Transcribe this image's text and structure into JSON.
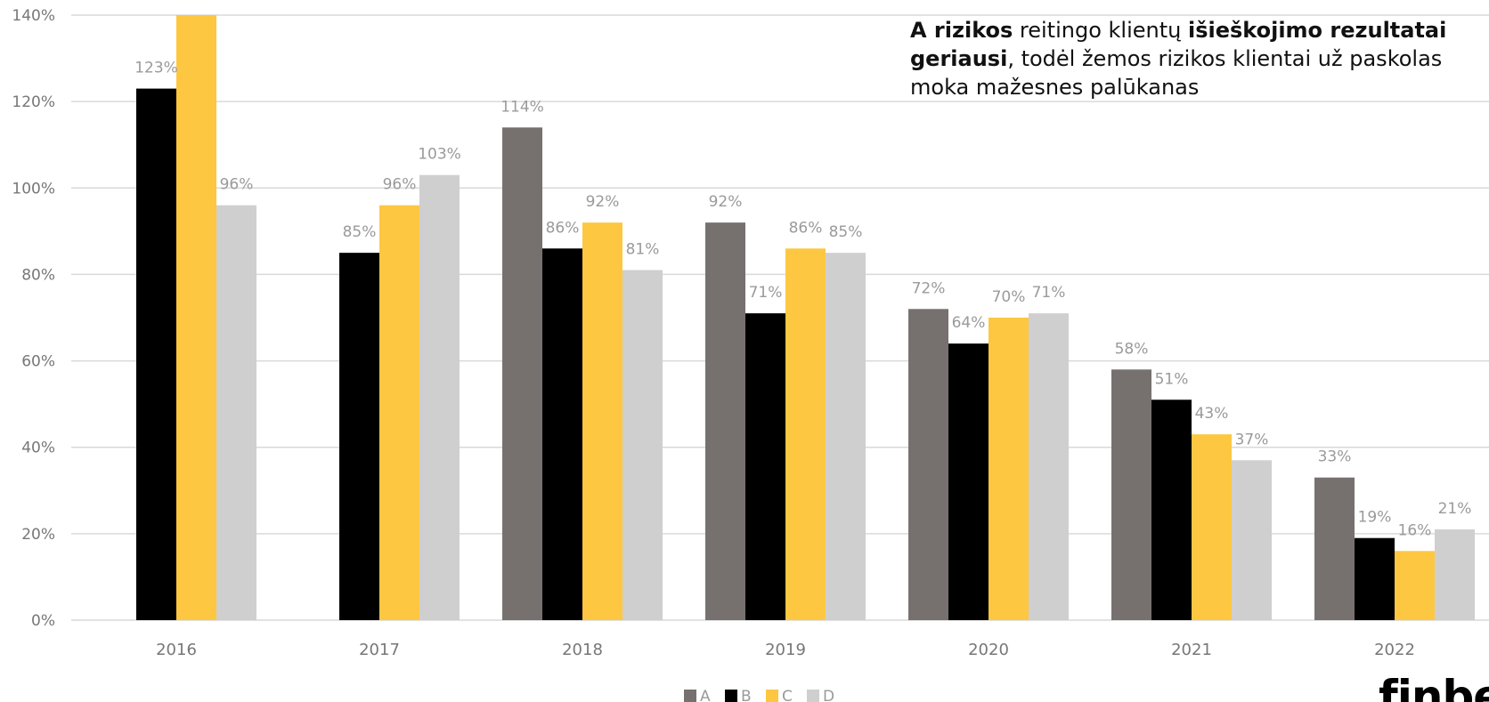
{
  "chart_data": {
    "type": "bar",
    "categories": [
      "2016",
      "2017",
      "2018",
      "2019",
      "2020",
      "2021",
      "2022"
    ],
    "series": [
      {
        "name": "A",
        "color": "#76716f",
        "values": [
          null,
          null,
          114,
          92,
          72,
          58,
          33
        ],
        "labels": [
          null,
          null,
          "114%",
          "92%",
          "72%",
          "58%",
          "33%"
        ]
      },
      {
        "name": "B",
        "color": "#000000",
        "values": [
          123,
          85,
          86,
          71,
          64,
          51,
          19
        ],
        "labels": [
          "123%",
          "85%",
          "86%",
          "71%",
          "64%",
          "51%",
          "19%"
        ]
      },
      {
        "name": "C",
        "color": "#fdc742",
        "values": [
          140,
          96,
          92,
          86,
          70,
          43,
          16
        ],
        "labels": [
          "",
          "96%",
          "92%",
          "86%",
          "70%",
          "43%",
          "16%"
        ]
      },
      {
        "name": "D",
        "color": "#d0cfcf",
        "values": [
          96,
          103,
          81,
          85,
          71,
          37,
          21
        ],
        "labels": [
          "96%",
          "103%",
          "81%",
          "85%",
          "71%",
          "37%",
          "21%"
        ]
      }
    ],
    "y_ticks": [
      "0%",
      "20%",
      "40%",
      "60%",
      "80%",
      "100%",
      "120%",
      "140%"
    ],
    "ylim": [
      0,
      140
    ],
    "grid": true,
    "legend": "bottom-center"
  },
  "annotation": {
    "bold1": "A rizikos",
    "text1": " reitingo klientų ",
    "bold2": "išieškojimo rezultatai",
    "bold3": "geriausi",
    "text2": ", todėl žemos rizikos klientai už paskolas",
    "text3": "moka mažesnes palūkanas"
  },
  "brand": {
    "text": "finbee"
  }
}
